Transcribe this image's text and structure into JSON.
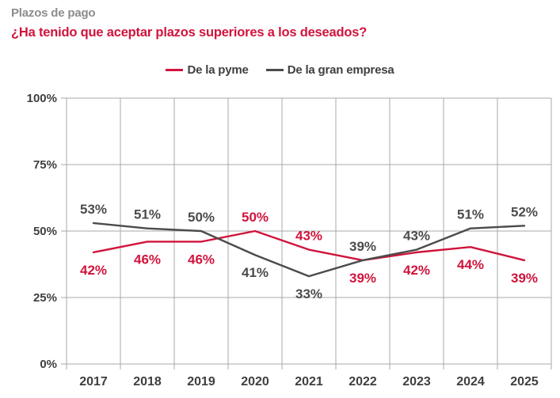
{
  "header": {
    "kicker": "Plazos de pago",
    "question": "¿Ha tenido que aceptar plazos superiores a los deseados?"
  },
  "colors": {
    "pyme_red": "#d0143c",
    "gran_empresa_gray": "#4b4b4b",
    "axis_text": "#3f3f3f",
    "kicker_gray": "#8c8c8c",
    "gridline": "#a9a9a9"
  },
  "chart_data": {
    "type": "line",
    "title": "Plazos de pago",
    "subtitle": "¿Ha tenido que aceptar plazos superiores a los deseados?",
    "categories": [
      "2017",
      "2018",
      "2019",
      "2020",
      "2021",
      "2022",
      "2023",
      "2024",
      "2025"
    ],
    "series": [
      {
        "name": "De la pyme",
        "color_key": "pyme_red",
        "values": [
          42,
          46,
          46,
          50,
          43,
          39,
          42,
          44,
          39
        ],
        "label_positions": [
          "below",
          "below",
          "below",
          "above",
          "above",
          "below",
          "below",
          "below",
          "below"
        ]
      },
      {
        "name": "De la gran empresa",
        "color_key": "gran_empresa_gray",
        "values": [
          53,
          51,
          50,
          41,
          33,
          39,
          43,
          51,
          52
        ],
        "label_positions": [
          "above",
          "above",
          "above",
          "below",
          "below",
          "above",
          "above",
          "above",
          "above"
        ]
      }
    ],
    "y_ticks": [
      0,
      25,
      50,
      75,
      100
    ],
    "y_tick_labels": [
      "0%",
      "25%",
      "50%",
      "75%",
      "100%"
    ],
    "ylim": [
      0,
      100
    ],
    "grid": true,
    "data_labels": true,
    "data_label_suffix": "%",
    "legend_position": "top-center"
  }
}
